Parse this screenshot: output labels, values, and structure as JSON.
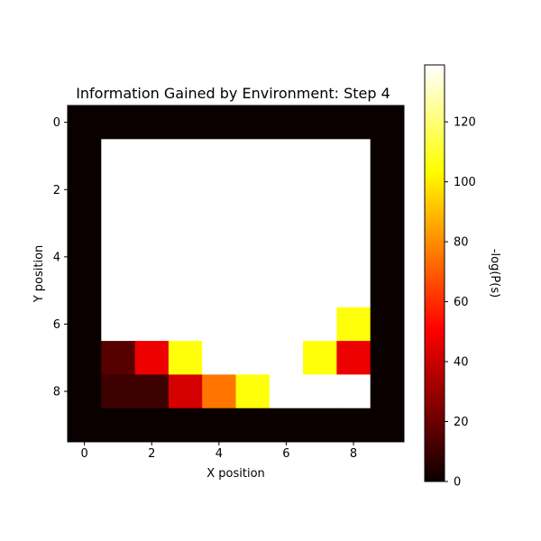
{
  "chart_data": {
    "type": "heatmap",
    "title": "Information Gained by Environment: Step 4",
    "xlabel": "X position",
    "ylabel": "Y position",
    "x_ticks": [
      0,
      2,
      4,
      6,
      8
    ],
    "y_ticks": [
      0,
      2,
      4,
      6,
      8
    ],
    "xlim": [
      -0.5,
      9.5
    ],
    "ylim": [
      9.5,
      -0.5
    ],
    "y_inverted": true,
    "grid": false,
    "colormap": "hot",
    "colorbar": {
      "label": "-log(P(s)",
      "range": [
        0,
        139
      ],
      "ticks": [
        0,
        20,
        40,
        60,
        80,
        100,
        120
      ]
    },
    "matrix": [
      [
        0,
        0,
        0,
        0,
        0,
        0,
        0,
        0,
        0,
        0
      ],
      [
        0,
        139,
        139,
        139,
        139,
        139,
        139,
        139,
        139,
        0
      ],
      [
        0,
        139,
        139,
        139,
        139,
        139,
        139,
        139,
        139,
        0
      ],
      [
        0,
        139,
        139,
        139,
        139,
        139,
        139,
        139,
        139,
        0
      ],
      [
        0,
        139,
        139,
        139,
        139,
        139,
        139,
        139,
        139,
        0
      ],
      [
        0,
        139,
        139,
        139,
        139,
        139,
        139,
        139,
        139,
        0
      ],
      [
        0,
        139,
        139,
        139,
        139,
        139,
        139,
        139,
        105,
        0
      ],
      [
        0,
        15,
        45,
        105,
        139,
        139,
        139,
        105,
        45,
        0
      ],
      [
        0,
        10,
        10,
        40,
        75,
        105,
        139,
        139,
        139,
        0
      ],
      [
        0,
        0,
        0,
        0,
        0,
        0,
        0,
        0,
        0,
        0
      ]
    ]
  }
}
